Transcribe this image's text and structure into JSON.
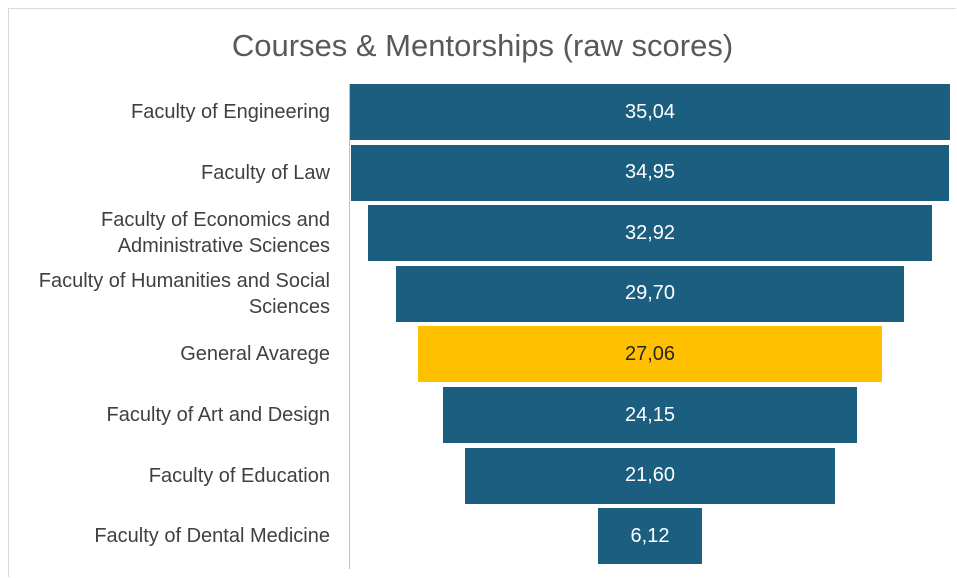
{
  "chart_data": {
    "type": "funnel",
    "title": "Courses & Mentorships (raw scores)",
    "categories": [
      "Faculty of Engineering",
      "Faculty of Law",
      "Faculty of Economics and Administrative Sciences",
      "Faculty of Humanities and Social Sciences",
      "General Avarege",
      "Faculty of Art and Design",
      "Faculty of Education",
      "Faculty of Dental Medicine"
    ],
    "values": [
      35.04,
      34.95,
      32.92,
      29.7,
      27.06,
      24.15,
      21.6,
      6.12
    ],
    "value_labels": [
      "35,04",
      "34,95",
      "32,92",
      "29,70",
      "27,06",
      "24,15",
      "21,60",
      "6,12"
    ],
    "colors": [
      "#1b5e80",
      "#1b5e80",
      "#1b5e80",
      "#1b5e80",
      "#ffc000",
      "#1b5e80",
      "#1b5e80",
      "#1b5e80"
    ]
  }
}
